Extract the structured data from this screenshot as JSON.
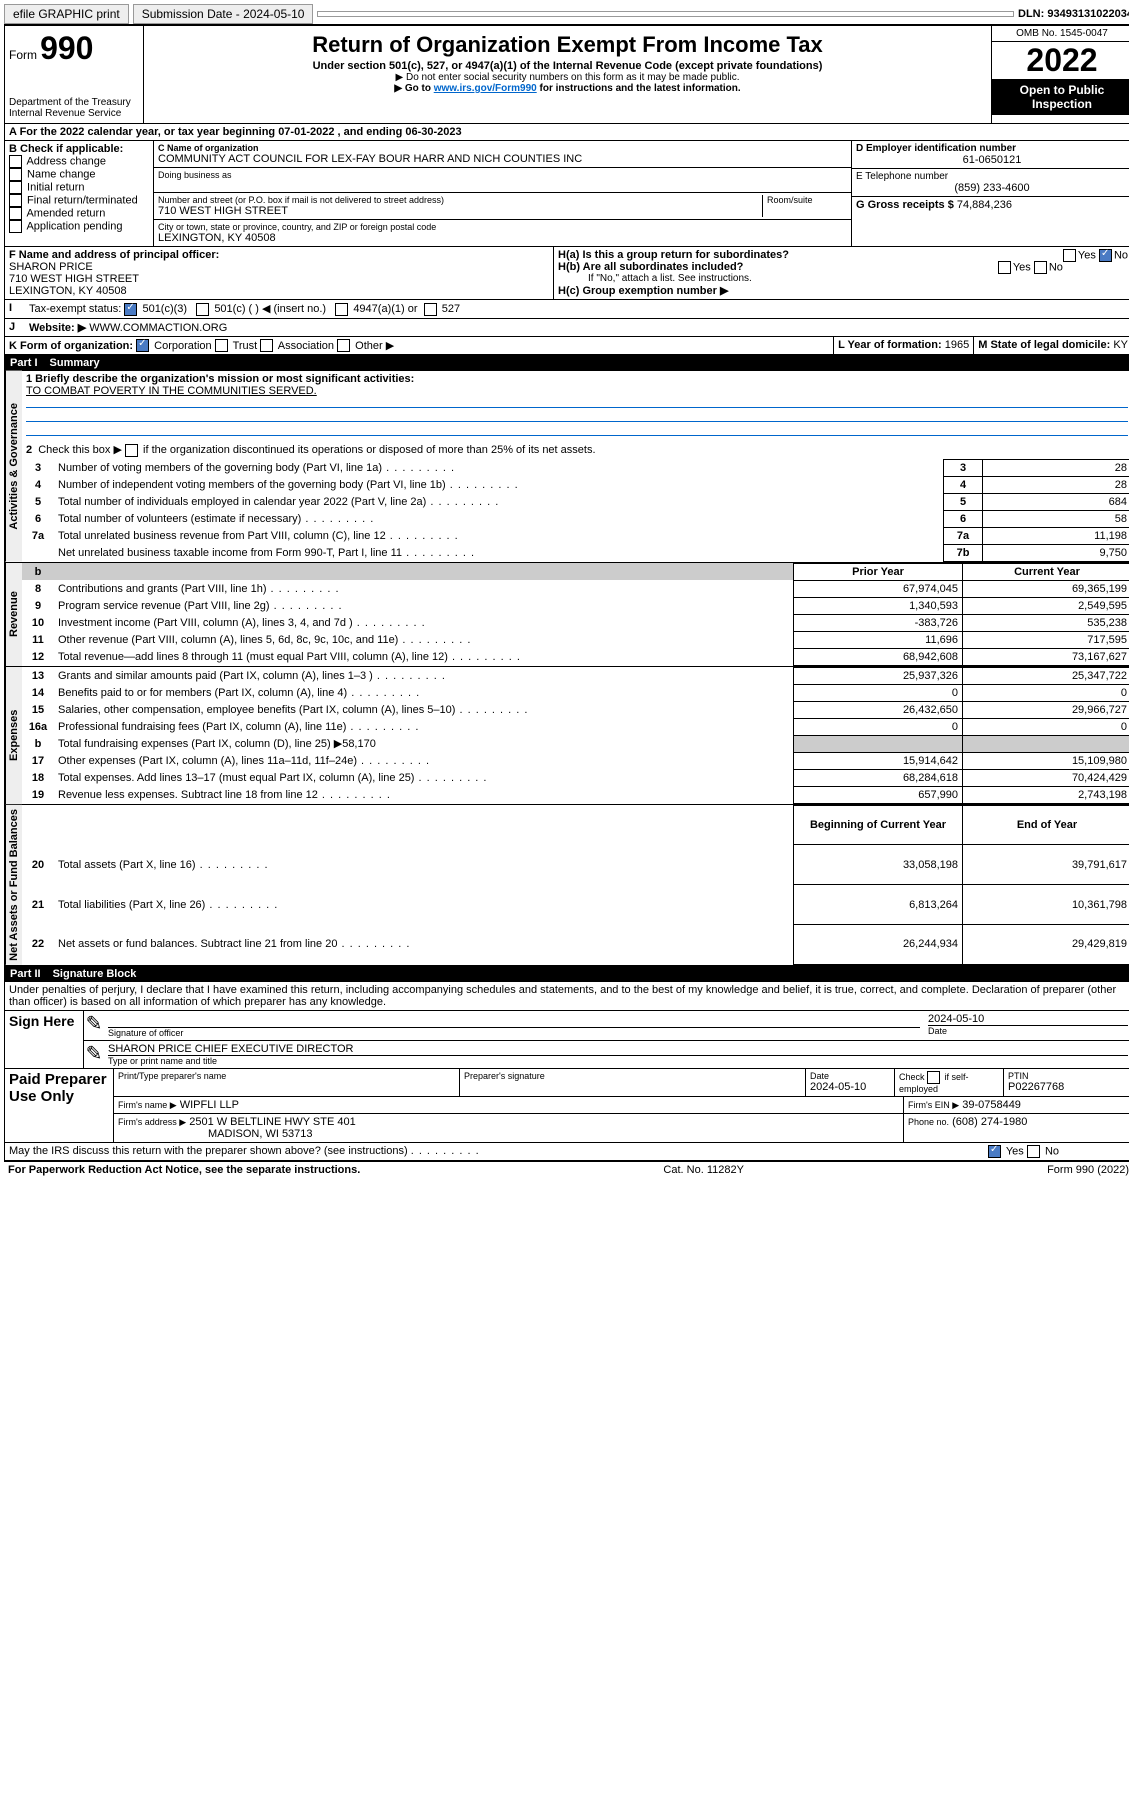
{
  "topbar": {
    "efile": "efile GRAPHIC print",
    "sub_label": "Submission Date - 2024-05-10",
    "dln": "DLN: 93493131022034"
  },
  "header": {
    "form_label": "Form",
    "form_num": "990",
    "dept": "Department of the Treasury\nInternal Revenue Service",
    "title": "Return of Organization Exempt From Income Tax",
    "subtitle": "Under section 501(c), 527, or 4947(a)(1) of the Internal Revenue Code (except private foundations)",
    "note1": "▶ Do not enter social security numbers on this form as it may be made public.",
    "note2_pre": "▶ Go to ",
    "note2_link": "www.irs.gov/Form990",
    "note2_post": " for instructions and the latest information.",
    "omb": "OMB No. 1545-0047",
    "year": "2022",
    "open": "Open to Public Inspection"
  },
  "section_a": {
    "line_a": "A For the 2022 calendar year, or tax year beginning 07-01-2022    , and ending 06-30-2023",
    "b_label": "B Check if applicable:",
    "b_opts": [
      "Address change",
      "Name change",
      "Initial return",
      "Final return/terminated",
      "Amended return",
      "Application pending"
    ],
    "c_label": "C Name of organization",
    "org_name": "COMMUNITY ACT COUNCIL FOR LEX-FAY BOUR HARR AND NICH COUNTIES INC",
    "dba_label": "Doing business as",
    "addr_label": "Number and street (or P.O. box if mail is not delivered to street address)",
    "room_label": "Room/suite",
    "addr": "710 WEST HIGH STREET",
    "city_label": "City or town, state or province, country, and ZIP or foreign postal code",
    "city": "LEXINGTON, KY  40508",
    "d_label": "D Employer identification number",
    "ein": "61-0650121",
    "e_label": "E Telephone number",
    "phone": "(859) 233-4600",
    "g_label": "G Gross receipts $",
    "gross": "74,884,236",
    "f_label": "F Name and address of principal officer:",
    "officer_name": "SHARON PRICE",
    "officer_addr1": "710 WEST HIGH STREET",
    "officer_addr2": "LEXINGTON, KY  40508",
    "ha_label": "H(a)  Is this a group return for subordinates?",
    "hb_label": "H(b)  Are all subordinates included?",
    "hb_note": "If \"No,\" attach a list. See instructions.",
    "hc_label": "H(c)  Group exemption number ▶",
    "yes": "Yes",
    "no": "No",
    "i_label": "Tax-exempt status:",
    "i_501c3": "501(c)(3)",
    "i_501c": "501(c) (  ) ◀ (insert no.)",
    "i_4947": "4947(a)(1) or",
    "i_527": "527",
    "j_label": "Website: ▶",
    "website": "WWW.COMMACTION.ORG",
    "k_label": "K Form of organization:",
    "k_corp": "Corporation",
    "k_trust": "Trust",
    "k_assoc": "Association",
    "k_other": "Other ▶",
    "l_label": "L Year of formation:",
    "l_val": "1965",
    "m_label": "M State of legal domicile:",
    "m_val": "KY"
  },
  "part1": {
    "header_num": "Part I",
    "header_title": "Summary",
    "line1_label": "1  Briefly describe the organization's mission or most significant activities:",
    "mission": "TO COMBAT POVERTY IN THE COMMUNITIES SERVED.",
    "line2": "2  Check this box ▶  if the organization discontinued its operations or disposed of more than 25% of its net assets.",
    "gov_rows": [
      {
        "n": "3",
        "desc": "Number of voting members of the governing body (Part VI, line 1a)",
        "box": "3",
        "val": "28"
      },
      {
        "n": "4",
        "desc": "Number of independent voting members of the governing body (Part VI, line 1b)",
        "box": "4",
        "val": "28"
      },
      {
        "n": "5",
        "desc": "Total number of individuals employed in calendar year 2022 (Part V, line 2a)",
        "box": "5",
        "val": "684"
      },
      {
        "n": "6",
        "desc": "Total number of volunteers (estimate if necessary)",
        "box": "6",
        "val": "58"
      },
      {
        "n": "7a",
        "desc": "Total unrelated business revenue from Part VIII, column (C), line 12",
        "box": "7a",
        "val": "11,198"
      },
      {
        "n": "",
        "desc": "Net unrelated business taxable income from Form 990-T, Part I, line 11",
        "box": "7b",
        "val": "9,750"
      }
    ],
    "col_prior": "Prior Year",
    "col_current": "Current Year",
    "rev_rows": [
      {
        "n": "8",
        "desc": "Contributions and grants (Part VIII, line 1h)",
        "p": "67,974,045",
        "c": "69,365,199"
      },
      {
        "n": "9",
        "desc": "Program service revenue (Part VIII, line 2g)",
        "p": "1,340,593",
        "c": "2,549,595"
      },
      {
        "n": "10",
        "desc": "Investment income (Part VIII, column (A), lines 3, 4, and 7d )",
        "p": "-383,726",
        "c": "535,238"
      },
      {
        "n": "11",
        "desc": "Other revenue (Part VIII, column (A), lines 5, 6d, 8c, 9c, 10c, and 11e)",
        "p": "11,696",
        "c": "717,595"
      },
      {
        "n": "12",
        "desc": "Total revenue—add lines 8 through 11 (must equal Part VIII, column (A), line 12)",
        "p": "68,942,608",
        "c": "73,167,627"
      }
    ],
    "exp_rows": [
      {
        "n": "13",
        "desc": "Grants and similar amounts paid (Part IX, column (A), lines 1–3 )",
        "p": "25,937,326",
        "c": "25,347,722"
      },
      {
        "n": "14",
        "desc": "Benefits paid to or for members (Part IX, column (A), line 4)",
        "p": "0",
        "c": "0"
      },
      {
        "n": "15",
        "desc": "Salaries, other compensation, employee benefits (Part IX, column (A), lines 5–10)",
        "p": "26,432,650",
        "c": "29,966,727"
      },
      {
        "n": "16a",
        "desc": "Professional fundraising fees (Part IX, column (A), line 11e)",
        "p": "0",
        "c": "0"
      },
      {
        "n": "b",
        "desc": "Total fundraising expenses (Part IX, column (D), line 25) ▶58,170",
        "p": "",
        "c": "",
        "gray": true
      },
      {
        "n": "17",
        "desc": "Other expenses (Part IX, column (A), lines 11a–11d, 11f–24e)",
        "p": "15,914,642",
        "c": "15,109,980"
      },
      {
        "n": "18",
        "desc": "Total expenses. Add lines 13–17 (must equal Part IX, column (A), line 25)",
        "p": "68,284,618",
        "c": "70,424,429"
      },
      {
        "n": "19",
        "desc": "Revenue less expenses. Subtract line 18 from line 12",
        "p": "657,990",
        "c": "2,743,198"
      }
    ],
    "col_begin": "Beginning of Current Year",
    "col_end": "End of Year",
    "net_rows": [
      {
        "n": "20",
        "desc": "Total assets (Part X, line 16)",
        "p": "33,058,198",
        "c": "39,791,617"
      },
      {
        "n": "21",
        "desc": "Total liabilities (Part X, line 26)",
        "p": "6,813,264",
        "c": "10,361,798"
      },
      {
        "n": "22",
        "desc": "Net assets or fund balances. Subtract line 21 from line 20",
        "p": "26,244,934",
        "c": "29,429,819"
      }
    ],
    "side_gov": "Activities & Governance",
    "side_rev": "Revenue",
    "side_exp": "Expenses",
    "side_net": "Net Assets or Fund Balances"
  },
  "part2": {
    "header_num": "Part II",
    "header_title": "Signature Block",
    "perjury": "Under penalties of perjury, I declare that I have examined this return, including accompanying schedules and statements, and to the best of my knowledge and belief, it is true, correct, and complete. Declaration of preparer (other than officer) is based on all information of which preparer has any knowledge.",
    "sign_here": "Sign Here",
    "sig_officer": "Signature of officer",
    "sig_date_label": "Date",
    "sig_date": "2024-05-10",
    "officer_line": "SHARON PRICE CHIEF EXECUTIVE DIRECTOR",
    "type_name": "Type or print name and title",
    "paid_prep": "Paid Preparer Use Only",
    "pt_name_label": "Print/Type preparer's name",
    "pt_sig_label": "Preparer's signature",
    "pt_date_label": "Date",
    "pt_date": "2024-05-10",
    "pt_check_label": "Check  if self-employed",
    "ptin_label": "PTIN",
    "ptin": "P02267768",
    "firm_name_label": "Firm's name   ▶",
    "firm_name": "WIPFLI LLP",
    "firm_ein_label": "Firm's EIN ▶",
    "firm_ein": "39-0758449",
    "firm_addr_label": "Firm's address ▶",
    "firm_addr1": "2501 W BELTLINE HWY STE 401",
    "firm_addr2": "MADISON, WI  53713",
    "firm_phone_label": "Phone no.",
    "firm_phone": "(608) 274-1980",
    "discuss": "May the IRS discuss this return with the preparer shown above? (see instructions)",
    "paperwork": "For Paperwork Reduction Act Notice, see the separate instructions.",
    "catno": "Cat. No. 11282Y",
    "formfoot": "Form 990 (2022)"
  }
}
